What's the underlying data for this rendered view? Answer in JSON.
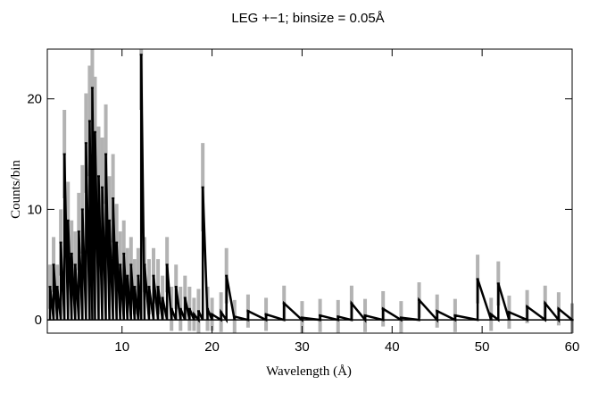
{
  "chart_data": {
    "type": "line",
    "title": "LEG +−1; binsize = 0.05Å",
    "xlabel": "Wavelength (Å)",
    "ylabel": "Counts/bin",
    "xlim": [
      1.7,
      60
    ],
    "ylim": [
      -1.2,
      24.5
    ],
    "x_ticks": [
      10,
      20,
      30,
      40,
      50,
      60
    ],
    "y_ticks": [
      0,
      10,
      20
    ],
    "grid": false,
    "legend": "none",
    "colors": {
      "data_line": "#000000",
      "error_bars": "#b3b3b3",
      "zero_line": "#000000"
    },
    "series": [
      {
        "values_description_note": "",
        "x": [
          2.0,
          2.4,
          2.8,
          3.2,
          3.6,
          4.0,
          4.4,
          4.8,
          5.2,
          5.6,
          6.0,
          6.4,
          6.7,
          7.0,
          7.4,
          7.8,
          8.2,
          8.6,
          9.0,
          9.4,
          9.8,
          10.2,
          10.6,
          11.0,
          11.4,
          11.8,
          12.13,
          12.5,
          13.0,
          13.5,
          14.0,
          14.5,
          15.0,
          15.5,
          16.0,
          16.5,
          17.0,
          17.5,
          18.0,
          18.5,
          18.97,
          19.5,
          20.0,
          21.0,
          21.6,
          22.5,
          24.0,
          26.0,
          28.0,
          30.0,
          32.0,
          34.0,
          35.5,
          37.0,
          39.0,
          41.0,
          43.0,
          45.0,
          47.0,
          49.5,
          51.0,
          51.8,
          53.0,
          55.0,
          57.0,
          58.5,
          60.0
        ],
        "y": [
          3,
          5,
          3,
          7,
          15,
          9,
          6,
          5,
          8,
          10,
          16,
          18,
          21,
          17,
          13,
          12,
          15,
          9,
          11,
          7,
          5,
          6,
          4,
          5,
          3,
          4,
          24,
          5,
          3,
          4,
          3,
          2,
          5,
          1,
          3,
          1,
          2,
          1,
          0.5,
          0.8,
          12,
          1,
          0.5,
          0.7,
          4,
          0.3,
          0.8,
          0.5,
          1.5,
          0.2,
          0.4,
          0.3,
          1.5,
          0.4,
          1.0,
          0.2,
          1.8,
          0.8,
          0.4,
          3.7,
          0.5,
          3.3,
          0.7,
          1.2,
          1.5,
          1.0,
          0.0
        ],
        "error": [
          2,
          2.5,
          2,
          3,
          4,
          3.5,
          3,
          3,
          3.5,
          4,
          4.5,
          5,
          5.5,
          5,
          4.5,
          4.5,
          4.5,
          4,
          4,
          3.5,
          3,
          3,
          2.5,
          2.5,
          2.5,
          2.5,
          5,
          2.5,
          2.5,
          2.5,
          2.5,
          2,
          2.5,
          2,
          2,
          2,
          2,
          2,
          1.5,
          2,
          4,
          2,
          1.5,
          1.8,
          2.5,
          1.5,
          1.5,
          1.5,
          1.6,
          1.5,
          1.5,
          1.5,
          1.6,
          1.5,
          1.6,
          1.5,
          1.6,
          1.5,
          1.5,
          2.2,
          1.5,
          2.0,
          1.5,
          1.5,
          1.6,
          1.5,
          1.5
        ]
      }
    ]
  }
}
